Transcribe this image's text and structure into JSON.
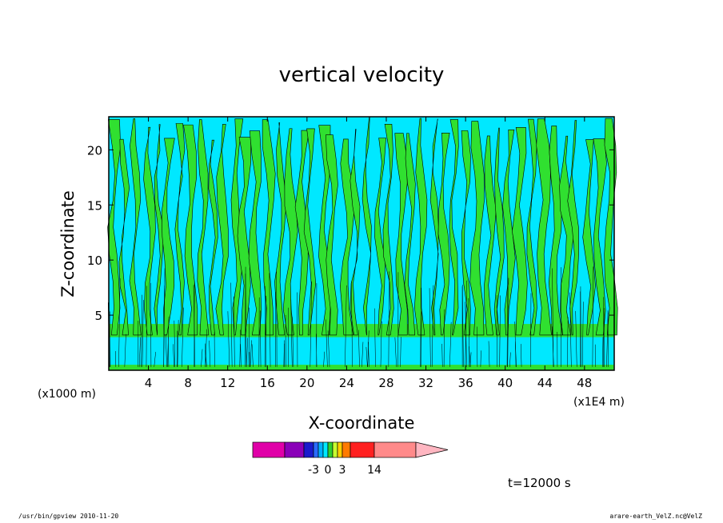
{
  "chart_data": {
    "type": "heatmap",
    "title": "vertical velocity",
    "xlabel": "X-coordinate",
    "ylabel": "Z-coordinate",
    "x_unit_left": "(x1000 m)",
    "x_unit_right": "(x1E4 m)",
    "x_ticks": [
      4,
      8,
      12,
      16,
      20,
      24,
      28,
      32,
      36,
      40,
      44,
      48
    ],
    "y_ticks": [
      5,
      10,
      15,
      20
    ],
    "xlim": [
      0,
      51
    ],
    "ylim": [
      0,
      23
    ],
    "colorbar": {
      "labels": [
        "-3",
        "0",
        "3",
        "14"
      ],
      "label_values": [
        -3,
        0,
        3,
        14
      ],
      "levels": [
        -12,
        -6,
        -3,
        -2,
        -1,
        0,
        1,
        2,
        3,
        6,
        14,
        25
      ],
      "colors": [
        "#e000a8",
        "#8a00b8",
        "#1a1acc",
        "#2a6bff",
        "#00b0ff",
        "#00e8ff",
        "#30d030",
        "#c8ff30",
        "#ffd000",
        "#ff7a00",
        "#ff2020",
        "#ff8a8a",
        "#ffb6c1"
      ]
    },
    "field_colors": {
      "negative": "#00e8ff",
      "positive": "#30e030"
    },
    "annotation": "t=12000 s"
  },
  "footer": {
    "left": "/usr/bin/gpview   2010-11-20",
    "right": "arare-earth_VelZ.nc@VelZ"
  }
}
